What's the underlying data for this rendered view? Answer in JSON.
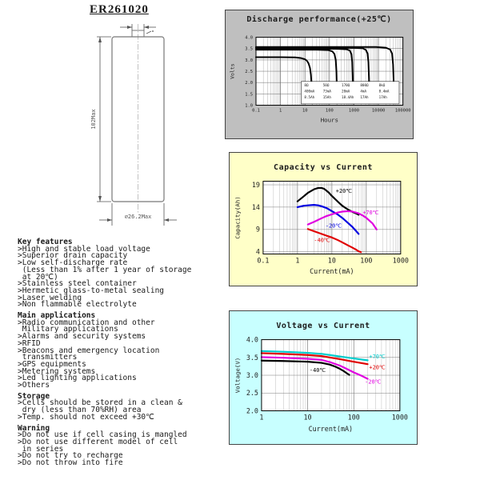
{
  "page": {
    "title": "ER261020"
  },
  "diagram": {
    "height_label": "102Max",
    "diameter_label": "⌀26.2Max"
  },
  "sections": [
    {
      "heading": "Key features",
      "lines": [
        ">High and stable load voltage",
        ">Superior drain capacity",
        ">Low self-discharge rate",
        " (Less than 1% after 1 year of storage",
        " at 20℃)",
        ">Stainless steel container",
        ">Hermetic glass-to-metal sealing",
        ">Laser welding",
        ">Non flammable electrolyte"
      ]
    },
    {
      "heading": "Main applications",
      "lines": [
        ">Radio communication and other",
        " Military applications",
        ">Alarms and security systems",
        ">RFID",
        ">Beacons and emergency location",
        " transmitters",
        ">GPS equipments",
        ">Metering systems",
        ">Led lighting applications",
        ">Others"
      ]
    },
    {
      "heading": "Storage",
      "lines": [
        ">Cells should be stored in a clean &",
        " dry (less than 70%RH) area",
        ">Temp. should not exceed +30℃"
      ]
    },
    {
      "heading": "Warning",
      "lines": [
        ">Do not use if cell casing is mangled",
        ">Do not use different model of cell",
        " in series",
        ">Do not try to recharge",
        ">Do not throw into fire"
      ]
    }
  ],
  "chart_data": [
    {
      "type": "line",
      "title": "Discharge performance(+25℃)",
      "panel_bg": "#bfbfbf",
      "xlabel": "Hours",
      "ylabel": "Volts",
      "x_scale": "log",
      "x_range": [
        0.1,
        100000
      ],
      "x_ticks": [
        {
          "v": 0.1,
          "label": "0.1"
        },
        {
          "v": 1,
          "label": "1"
        },
        {
          "v": 10,
          "label": "10"
        },
        {
          "v": 100,
          "label": "100"
        },
        {
          "v": 1000,
          "label": "1000"
        },
        {
          "v": 10000,
          "label": "10000"
        },
        {
          "v": 100000,
          "label": "100000"
        }
      ],
      "y_range": [
        1.0,
        4.0
      ],
      "y_ticks": [
        {
          "v": 4.0,
          "label": "4.0"
        },
        {
          "v": 3.5,
          "label": "3.5"
        },
        {
          "v": 3.0,
          "label": "3.0"
        },
        {
          "v": 2.5,
          "label": "2.5"
        },
        {
          "v": 2.0,
          "label": "2.0"
        },
        {
          "v": 1.5,
          "label": "1.5"
        },
        {
          "v": 1.0,
          "label": "1.0"
        }
      ],
      "series": [
        {
          "name": "8Ω 400mA 8.5Ah",
          "color": "#000000",
          "points": [
            [
              0.1,
              3.12
            ],
            [
              1,
              3.12
            ],
            [
              4,
              3.11
            ],
            [
              7,
              3.08
            ],
            [
              10,
              3.03
            ],
            [
              12,
              2.96
            ],
            [
              14,
              2.85
            ],
            [
              16,
              2.65
            ],
            [
              17.5,
              2.35
            ],
            [
              18.6,
              1.9
            ],
            [
              19.3,
              1.4
            ],
            [
              19.7,
              1.08
            ]
          ]
        },
        {
          "name": "50Ω 73mA 15Ah",
          "color": "#000000",
          "points": [
            [
              0.1,
              3.45
            ],
            [
              30,
              3.45
            ],
            [
              90,
              3.43
            ],
            [
              130,
              3.38
            ],
            [
              160,
              3.26
            ],
            [
              180,
              3.0
            ],
            [
              192,
              2.5
            ],
            [
              200,
              1.8
            ],
            [
              205,
              1.08
            ]
          ]
        },
        {
          "name": "170Ω 20mA 18.4Ah",
          "color": "#000000",
          "points": [
            [
              0.1,
              3.49
            ],
            [
              200,
              3.49
            ],
            [
              500,
              3.47
            ],
            [
              680,
              3.41
            ],
            [
              790,
              3.25
            ],
            [
              850,
              2.9
            ],
            [
              890,
              2.3
            ],
            [
              915,
              1.6
            ],
            [
              925,
              1.08
            ]
          ]
        },
        {
          "name": "800Ω 4mA 17Ah",
          "color": "#000000",
          "points": [
            [
              0.1,
              3.53
            ],
            [
              1000,
              3.53
            ],
            [
              2300,
              3.51
            ],
            [
              3100,
              3.44
            ],
            [
              3600,
              3.28
            ],
            [
              3900,
              2.9
            ],
            [
              4100,
              2.2
            ],
            [
              4250,
              1.5
            ],
            [
              4300,
              1.08
            ]
          ]
        },
        {
          "name": "8kΩ 0.4mA 17Ah",
          "color": "#000000",
          "points": [
            [
              0.1,
              3.57
            ],
            [
              8000,
              3.57
            ],
            [
              20000,
              3.54
            ],
            [
              30000,
              3.46
            ],
            [
              36000,
              3.28
            ],
            [
              39500,
              2.8
            ],
            [
              41500,
              2.1
            ],
            [
              43000,
              1.4
            ],
            [
              43500,
              1.08
            ]
          ]
        }
      ],
      "legend_table": {
        "columns": [
          [
            "8Ω",
            "400mA",
            "8.5Ah"
          ],
          [
            "50Ω",
            "73mA",
            "15Ah"
          ],
          [
            "170Ω",
            "20mA",
            "18.4Ah"
          ],
          [
            "800Ω",
            "4mA",
            "17Ah"
          ],
          [
            "8kΩ",
            "0.4mA",
            "17Ah"
          ]
        ]
      },
      "labels": []
    },
    {
      "type": "line",
      "title": "Capacity vs Current",
      "panel_bg": "#ffffc8",
      "xlabel": "Current(mA)",
      "ylabel": "Capacity(Ah)",
      "x_scale": "log",
      "x_range": [
        0.1,
        1000
      ],
      "x_ticks": [
        {
          "v": 0.1,
          "label": "0.1"
        },
        {
          "v": 1,
          "label": "1"
        },
        {
          "v": 10,
          "label": "10"
        },
        {
          "v": 100,
          "label": "100"
        },
        {
          "v": 1000,
          "label": "1000"
        }
      ],
      "y_range": [
        3.5,
        19.8
      ],
      "y_ticks": [
        {
          "v": 19,
          "label": "19"
        },
        {
          "v": 14,
          "label": "14"
        },
        {
          "v": 9,
          "label": "9"
        },
        {
          "v": 4,
          "label": "4"
        }
      ],
      "series": [
        {
          "name": "+20℃",
          "color": "#000000",
          "points": [
            [
              1,
              15.3
            ],
            [
              1.5,
              16.4
            ],
            [
              2,
              17.2
            ],
            [
              3,
              18.0
            ],
            [
              4,
              18.3
            ],
            [
              5,
              18.3
            ],
            [
              6,
              18.1
            ],
            [
              8,
              17.3
            ],
            [
              10,
              16.5
            ],
            [
              15,
              15.2
            ],
            [
              20,
              14.3
            ],
            [
              30,
              13.4
            ],
            [
              40,
              12.9
            ],
            [
              50,
              12.6
            ],
            [
              60,
              12.3
            ]
          ]
        },
        {
          "name": "-20℃",
          "color": "#0000e0",
          "points": [
            [
              1,
              14.0
            ],
            [
              1.5,
              14.3
            ],
            [
              2,
              14.4
            ],
            [
              3,
              14.5
            ],
            [
              4,
              14.4
            ],
            [
              5,
              14.2
            ],
            [
              7,
              13.8
            ],
            [
              10,
              13.1
            ],
            [
              15,
              12.3
            ],
            [
              20,
              11.6
            ],
            [
              30,
              10.4
            ],
            [
              40,
              9.5
            ],
            [
              50,
              8.7
            ],
            [
              60,
              8.0
            ]
          ]
        },
        {
          "name": "+70℃",
          "color": "#e000e0",
          "points": [
            [
              2,
              10.1
            ],
            [
              3,
              10.7
            ],
            [
              5,
              11.5
            ],
            [
              7,
              12.0
            ],
            [
              10,
              12.4
            ],
            [
              15,
              12.8
            ],
            [
              20,
              13.0
            ],
            [
              30,
              13.1
            ],
            [
              40,
              13.0
            ],
            [
              60,
              12.6
            ],
            [
              80,
              12.1
            ],
            [
              100,
              11.6
            ],
            [
              150,
              10.4
            ],
            [
              200,
              9.0
            ]
          ]
        },
        {
          "name": "-40℃",
          "color": "#e00000",
          "points": [
            [
              2,
              9.1
            ],
            [
              3,
              8.6
            ],
            [
              5,
              8.0
            ],
            [
              7,
              7.6
            ],
            [
              10,
              7.2
            ],
            [
              15,
              6.6
            ],
            [
              20,
              6.1
            ],
            [
              30,
              5.4
            ],
            [
              40,
              4.9
            ],
            [
              50,
              4.5
            ],
            [
              60,
              4.1
            ],
            [
              70,
              3.9
            ]
          ]
        }
      ],
      "labels": [
        {
          "text": "+20℃",
          "color": "#000000",
          "x": 13,
          "y": 17.2
        },
        {
          "text": "+70℃",
          "color": "#e000e0",
          "x": 78,
          "y": 12.35
        },
        {
          "text": "-20℃",
          "color": "#0000e0",
          "x": 6.5,
          "y": 9.4
        },
        {
          "text": "-40℃",
          "color": "#e00000",
          "x": 3.0,
          "y": 6.2
        }
      ]
    },
    {
      "type": "line",
      "title": "Voltage vs Current",
      "panel_bg": "#c8ffff",
      "xlabel": "Current(mA)",
      "ylabel": "Voltage(V)",
      "x_scale": "log",
      "x_range": [
        1,
        1000
      ],
      "x_ticks": [
        {
          "v": 1,
          "label": "1"
        },
        {
          "v": 10,
          "label": "10"
        },
        {
          "v": 100,
          "label": "100"
        },
        {
          "v": 1000,
          "label": "1000"
        }
      ],
      "y_range": [
        2.0,
        4.0
      ],
      "y_ticks": [
        {
          "v": 4.0,
          "label": "4.0"
        },
        {
          "v": 3.5,
          "label": "3.5"
        },
        {
          "v": 3.0,
          "label": "3.0"
        },
        {
          "v": 2.5,
          "label": "2.5"
        },
        {
          "v": 2.0,
          "label": "2.0"
        }
      ],
      "series": [
        {
          "name": "+70℃",
          "color": "#00cccc",
          "points": [
            [
              1,
              3.68
            ],
            [
              3,
              3.66
            ],
            [
              10,
              3.63
            ],
            [
              20,
              3.6
            ],
            [
              30,
              3.57
            ],
            [
              50,
              3.53
            ],
            [
              100,
              3.47
            ],
            [
              150,
              3.44
            ],
            [
              200,
              3.42
            ]
          ]
        },
        {
          "name": "+20℃",
          "color": "#e00000",
          "points": [
            [
              1,
              3.62
            ],
            [
              3,
              3.6
            ],
            [
              10,
              3.57
            ],
            [
              20,
              3.54
            ],
            [
              30,
              3.5
            ],
            [
              50,
              3.45
            ],
            [
              100,
              3.38
            ],
            [
              150,
              3.34
            ],
            [
              200,
              3.31
            ]
          ]
        },
        {
          "name": "-20℃",
          "color": "#e000e0",
          "points": [
            [
              1,
              3.51
            ],
            [
              3,
              3.49
            ],
            [
              10,
              3.46
            ],
            [
              20,
              3.43
            ],
            [
              30,
              3.37
            ],
            [
              50,
              3.27
            ],
            [
              70,
              3.18
            ],
            [
              100,
              3.08
            ],
            [
              150,
              2.98
            ],
            [
              200,
              2.9
            ]
          ]
        },
        {
          "name": "-40℃",
          "color": "#000000",
          "points": [
            [
              1,
              3.41
            ],
            [
              3,
              3.4
            ],
            [
              10,
              3.38
            ],
            [
              20,
              3.35
            ],
            [
              30,
              3.3
            ],
            [
              40,
              3.24
            ],
            [
              50,
              3.18
            ],
            [
              60,
              3.12
            ],
            [
              70,
              3.06
            ],
            [
              80,
              3.01
            ]
          ]
        }
      ],
      "labels": [
        {
          "text": "+70℃",
          "color": "#00cccc",
          "x": 215,
          "y": 3.47
        },
        {
          "text": "+20℃",
          "color": "#e00000",
          "x": 215,
          "y": 3.17
        },
        {
          "text": "-20℃",
          "color": "#e000e0",
          "x": 175,
          "y": 2.76
        },
        {
          "text": "-40℃",
          "color": "#000000",
          "x": 11,
          "y": 3.09
        }
      ]
    }
  ]
}
